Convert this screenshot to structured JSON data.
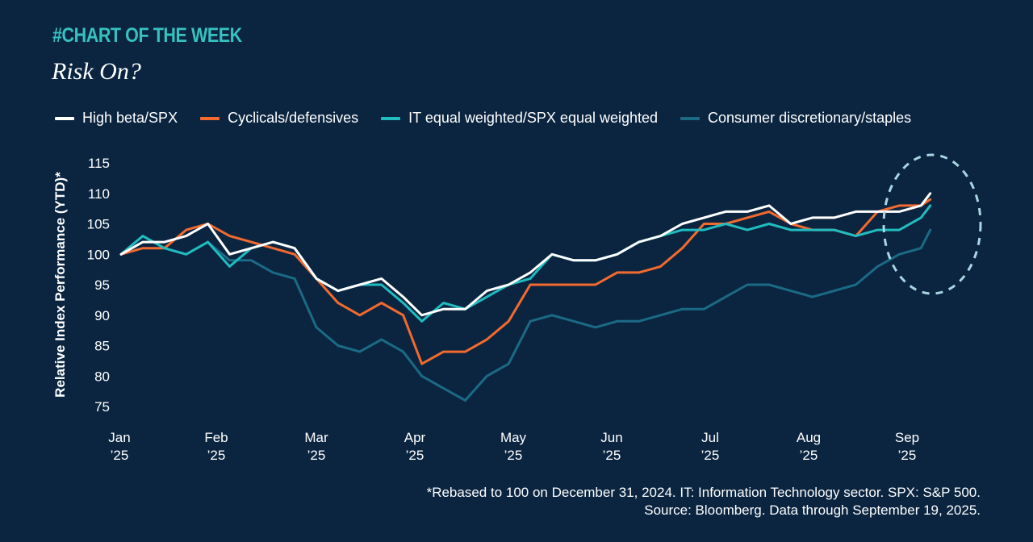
{
  "header": {
    "kicker": "#CHART OF THE WEEK",
    "title": "Risk On?"
  },
  "footnote": {
    "line1": "*Rebased to 100 on December 31, 2024. IT: Information Technology sector. SPX: S&P 500.",
    "line2": "Source: Bloomberg. Data through September 19, 2025."
  },
  "colors": {
    "background": "#0b2540",
    "high_beta": "#ffffff",
    "cyclicals": "#f26a2e",
    "it_equal": "#20bcc0",
    "consumer": "#1a6a86",
    "highlight_circle": "#a9d6e2"
  },
  "chart_data": {
    "type": "line",
    "ylabel": "Relative Index Performance (YTD)*",
    "ylim": [
      74,
      116
    ],
    "yticks": [
      115,
      110,
      105,
      100,
      95,
      90,
      85,
      80,
      75
    ],
    "x_domain": [
      "2025-01-01",
      "2025-09-30"
    ],
    "x_ticks": [
      {
        "date": "2025-01-01",
        "month": "Jan",
        "year": "’25"
      },
      {
        "date": "2025-02-01",
        "month": "Feb",
        "year": "’25"
      },
      {
        "date": "2025-03-01",
        "month": "Mar",
        "year": "’25"
      },
      {
        "date": "2025-04-01",
        "month": "Apr",
        "year": "’25"
      },
      {
        "date": "2025-05-01",
        "month": "May",
        "year": "’25"
      },
      {
        "date": "2025-06-01",
        "month": "Jun",
        "year": "’25"
      },
      {
        "date": "2025-07-01",
        "month": "Jul",
        "year": "’25"
      },
      {
        "date": "2025-08-01",
        "month": "Aug",
        "year": "’25"
      },
      {
        "date": "2025-09-01",
        "month": "Sep",
        "year": "’25"
      }
    ],
    "x": [
      "2025-01-01",
      "2025-01-08",
      "2025-01-15",
      "2025-01-22",
      "2025-01-29",
      "2025-02-05",
      "2025-02-12",
      "2025-02-19",
      "2025-02-26",
      "2025-03-05",
      "2025-03-12",
      "2025-03-19",
      "2025-03-26",
      "2025-04-02",
      "2025-04-08",
      "2025-04-15",
      "2025-04-22",
      "2025-04-29",
      "2025-05-06",
      "2025-05-13",
      "2025-05-20",
      "2025-05-27",
      "2025-06-03",
      "2025-06-10",
      "2025-06-17",
      "2025-06-24",
      "2025-07-01",
      "2025-07-08",
      "2025-07-15",
      "2025-07-22",
      "2025-07-29",
      "2025-08-05",
      "2025-08-12",
      "2025-08-19",
      "2025-08-26",
      "2025-09-02",
      "2025-09-09",
      "2025-09-16",
      "2025-09-19"
    ],
    "series": [
      {
        "name": "High beta/SPX",
        "color_key": "high_beta",
        "values": [
          100,
          102,
          102,
          103,
          105,
          100,
          101,
          102,
          101,
          96,
          94,
          95,
          96,
          93,
          90,
          91,
          91,
          94,
          95,
          97,
          100,
          99,
          99,
          100,
          102,
          103,
          105,
          106,
          107,
          107,
          108,
          105,
          106,
          106,
          107,
          107,
          107,
          108,
          110
        ]
      },
      {
        "name": "Cyclicals/defensives",
        "color_key": "cyclicals",
        "values": [
          100,
          101,
          101,
          104,
          105,
          103,
          102,
          101,
          100,
          96,
          92,
          90,
          92,
          90,
          82,
          84,
          84,
          86,
          89,
          95,
          95,
          95,
          95,
          97,
          97,
          98,
          101,
          105,
          105,
          106,
          107,
          105,
          104,
          104,
          103,
          107,
          108,
          108,
          109
        ]
      },
      {
        "name": "IT equal weighted/SPX equal weighted",
        "color_key": "it_equal",
        "values": [
          100,
          103,
          101,
          100,
          102,
          98,
          101,
          102,
          101,
          96,
          94,
          95,
          95,
          92,
          89,
          92,
          91,
          93,
          95,
          96,
          100,
          99,
          99,
          100,
          102,
          103,
          104,
          104,
          105,
          104,
          105,
          104,
          104,
          104,
          103,
          104,
          104,
          106,
          108
        ]
      },
      {
        "name": "Consumer discretionary/staples",
        "color_key": "consumer",
        "values": [
          100,
          103,
          101,
          100,
          102,
          99,
          99,
          97,
          96,
          88,
          85,
          84,
          86,
          84,
          80,
          78,
          76,
          80,
          82,
          89,
          90,
          89,
          88,
          89,
          89,
          90,
          91,
          91,
          93,
          95,
          95,
          94,
          93,
          94,
          95,
          98,
          100,
          101,
          104
        ]
      }
    ],
    "annotations": [
      {
        "type": "dashed-ellipse",
        "around": "Sep 2025"
      }
    ],
    "legend": "top",
    "grid": false
  }
}
